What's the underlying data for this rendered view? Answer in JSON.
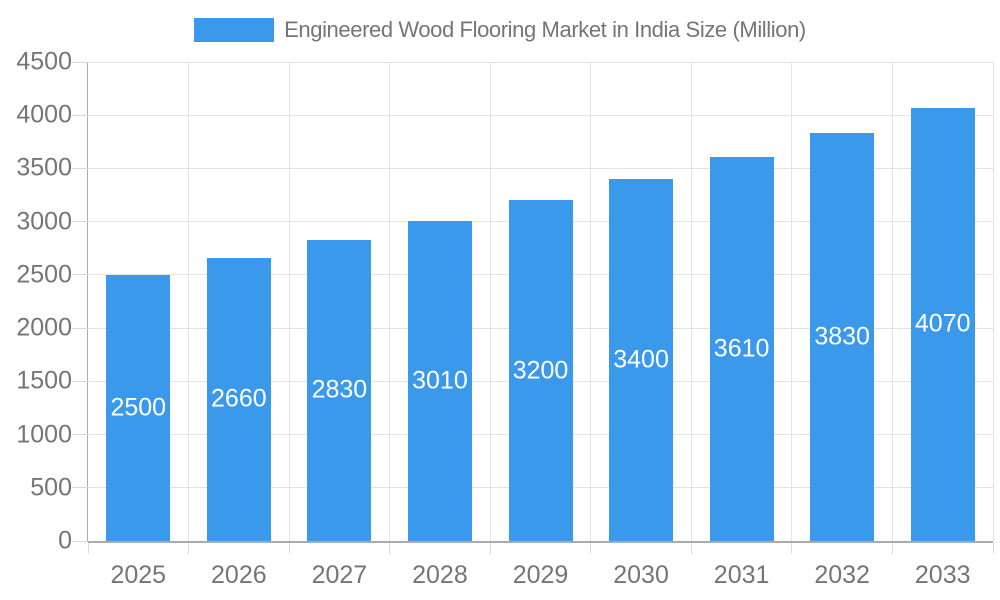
{
  "legend": {
    "label": "Engineered Wood Flooring Market in India Size (Million)"
  },
  "chart_data": {
    "type": "bar",
    "title": "Engineered Wood Flooring Market in India Size (Million)",
    "categories": [
      "2025",
      "2026",
      "2027",
      "2028",
      "2029",
      "2030",
      "2031",
      "2032",
      "2033"
    ],
    "values": [
      2500,
      2660,
      2830,
      3010,
      3200,
      3400,
      3610,
      3830,
      4070
    ],
    "xlabel": "",
    "ylabel": "",
    "ylim": [
      0,
      4500
    ],
    "yticks": [
      0,
      500,
      1000,
      1500,
      2000,
      2500,
      3000,
      3500,
      4000,
      4500
    ],
    "grid": {
      "horizontal": true,
      "vertical": true
    },
    "legend_position": "top",
    "bar_labels_inside": true,
    "colors": {
      "bar": "#3b99ec",
      "bar_label_text": "#ffffff",
      "axis_text": "#757575",
      "title_text": "#757575",
      "gridline": "#e3e3e3",
      "axis_line": "#ababab",
      "tick": "#d9d9d9",
      "background": "#ffffff"
    }
  }
}
